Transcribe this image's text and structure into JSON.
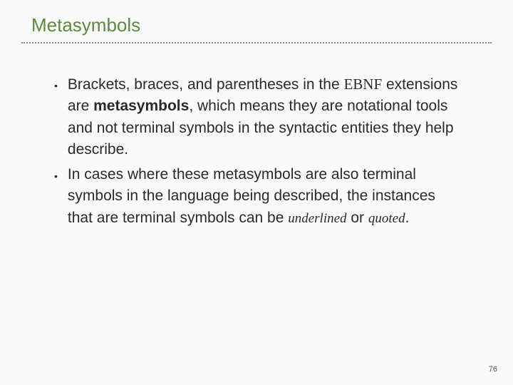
{
  "slide": {
    "title": "Metasymbols",
    "bullets": [
      {
        "pre": "Brackets, braces, and parentheses in the ",
        "ebnf": "EBNF",
        "mid1": " extensions are ",
        "bold": "metasymbols",
        "post": ", which means they are notational tools and not terminal symbols in the syntactic entities they help describe."
      },
      {
        "pre": "In cases where these metasymbols are also terminal symbols in the language being described, the instances that are terminal symbols can be ",
        "italic1": "underlined",
        "mid": " or ",
        "italic2": "quoted",
        "post": "."
      }
    ],
    "page_number": "76"
  },
  "colors": {
    "title_color": "#5a8a3a",
    "text_color": "#2a2a2a",
    "background": "#fafafa",
    "dot_color": "#888"
  },
  "typography": {
    "title_fontsize": 26,
    "body_fontsize": 21,
    "italic_fontsize": 19,
    "pagenum_fontsize": 11
  }
}
